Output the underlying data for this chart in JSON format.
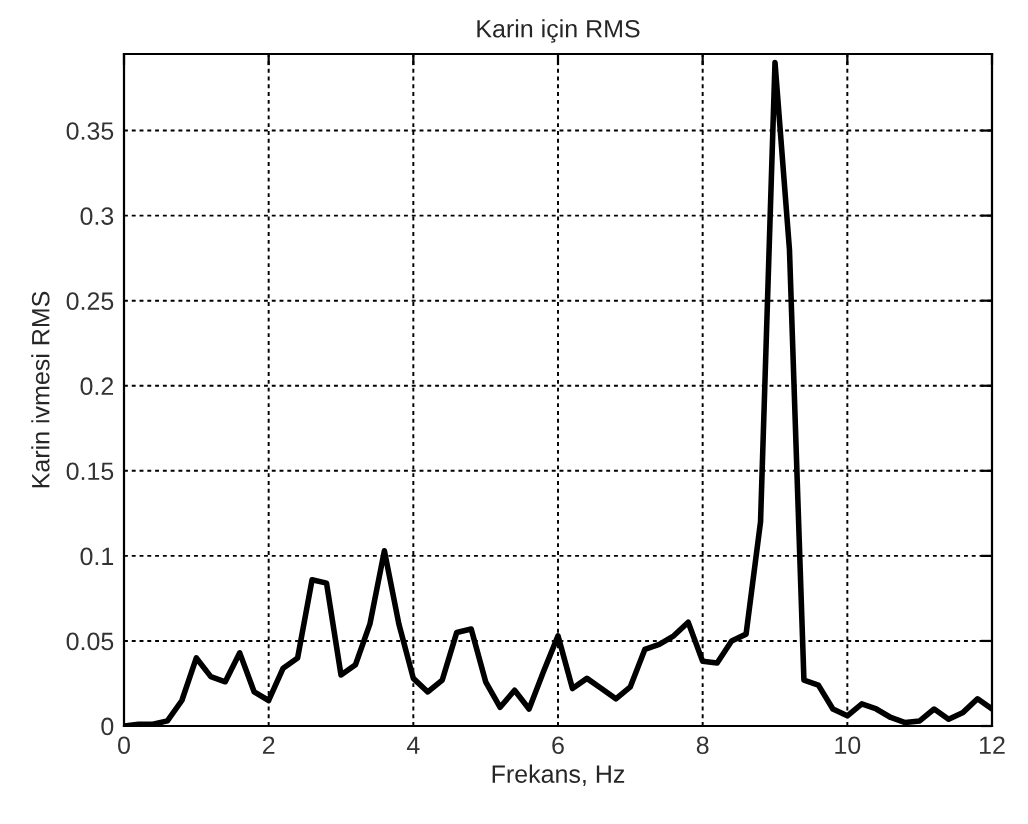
{
  "chart_data": {
    "type": "line",
    "title": "Karin için RMS",
    "xlabel": "Frekans, Hz",
    "ylabel": "Karin ivmesi RMS",
    "x": [
      0,
      0.2,
      0.4,
      0.6,
      0.8,
      1.0,
      1.2,
      1.4,
      1.6,
      1.8,
      2.0,
      2.2,
      2.4,
      2.6,
      2.8,
      3.0,
      3.2,
      3.4,
      3.6,
      3.8,
      4.0,
      4.2,
      4.4,
      4.6,
      4.8,
      5.0,
      5.2,
      5.4,
      5.6,
      5.8,
      6.0,
      6.2,
      6.4,
      6.6,
      6.8,
      7.0,
      7.2,
      7.4,
      7.6,
      7.8,
      8.0,
      8.2,
      8.4,
      8.6,
      8.8,
      9.0,
      9.2,
      9.4,
      9.6,
      9.8,
      10.0,
      10.2,
      10.4,
      10.6,
      10.8,
      11.0,
      11.2,
      11.4,
      11.6,
      11.8,
      12.0
    ],
    "series": [
      {
        "color": "#000000",
        "values": [
          0,
          0.001,
          0.001,
          0.003,
          0.015,
          0.04,
          0.029,
          0.026,
          0.043,
          0.02,
          0.015,
          0.034,
          0.04,
          0.086,
          0.084,
          0.03,
          0.036,
          0.06,
          0.103,
          0.06,
          0.028,
          0.02,
          0.027,
          0.055,
          0.057,
          0.026,
          0.011,
          0.021,
          0.01,
          0.032,
          0.053,
          0.022,
          0.028,
          0.022,
          0.016,
          0.023,
          0.045,
          0.048,
          0.053,
          0.061,
          0.038,
          0.037,
          0.05,
          0.054,
          0.12,
          0.39,
          0.28,
          0.027,
          0.024,
          0.01,
          0.006,
          0.013,
          0.01,
          0.005,
          0.002,
          0.003,
          0.01,
          0.004,
          0.008,
          0.016,
          0.01
        ]
      }
    ],
    "xlim": [
      0,
      12
    ],
    "xticks": [
      0,
      2,
      4,
      6,
      8,
      10,
      12
    ],
    "ylim": [
      0,
      0.395
    ],
    "yticks": [
      0,
      0.05,
      0.1,
      0.15,
      0.2,
      0.25,
      0.3,
      0.35
    ],
    "grid": true,
    "marker": "none",
    "line_style": "solid"
  }
}
